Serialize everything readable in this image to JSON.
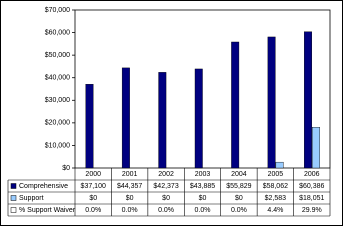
{
  "chart_data": {
    "type": "bar",
    "categories": [
      "2000",
      "2001",
      "2002",
      "2003",
      "2004",
      "2005",
      "2006"
    ],
    "series": [
      {
        "name": "Comprehensive",
        "color": "#000080",
        "values": [
          37100,
          44357,
          42373,
          43885,
          55829,
          58062,
          60386
        ],
        "value_labels": [
          "$37,100",
          "$44,357",
          "$42,373",
          "$43,885",
          "$55,829",
          "$58,062",
          "$60,386"
        ]
      },
      {
        "name": "Support",
        "color": "#99ccff",
        "values": [
          0,
          0,
          0,
          0,
          0,
          2583,
          18051
        ],
        "value_labels": [
          "$0",
          "$0",
          "$0",
          "$0",
          "$0",
          "$2,583",
          "$18,051"
        ]
      },
      {
        "name": "% Support Waiver",
        "color": "#ffffff",
        "values": [
          0.0,
          0.0,
          0.0,
          0.0,
          0.0,
          4.4,
          29.9
        ],
        "value_labels": [
          "0.0%",
          "0.0%",
          "0.0%",
          "0.0%",
          "0.0%",
          "4.4%",
          "29.9%"
        ]
      }
    ],
    "ylim": [
      0,
      70000
    ],
    "yticks": [
      {
        "value": 0,
        "label": "$0"
      },
      {
        "value": 10000,
        "label": "$10,000"
      },
      {
        "value": 20000,
        "label": "$20,000"
      },
      {
        "value": 30000,
        "label": "$30,000"
      },
      {
        "value": 40000,
        "label": "$40,000"
      },
      {
        "value": 50000,
        "label": "$50,000"
      },
      {
        "value": 60000,
        "label": "$60,000"
      },
      {
        "value": 70000,
        "label": "$70,000"
      }
    ],
    "grid": false
  }
}
